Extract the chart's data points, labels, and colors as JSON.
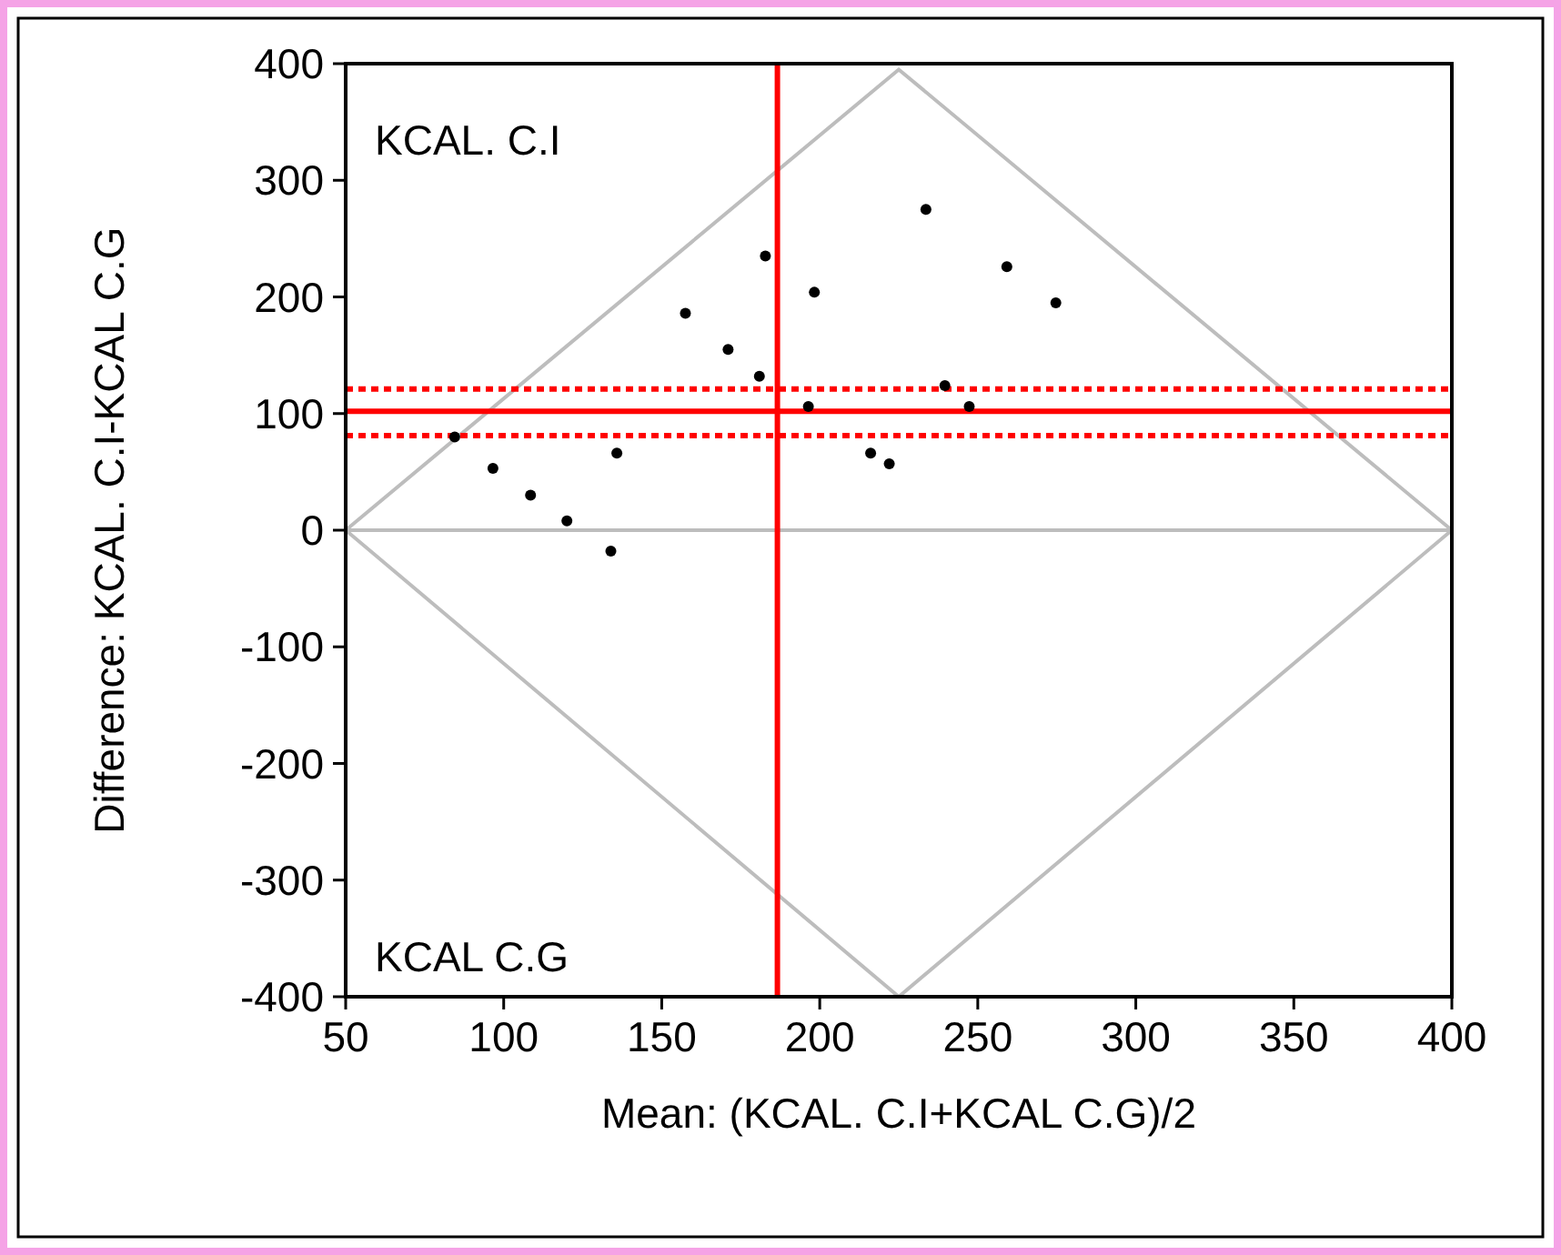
{
  "chart_data": {
    "type": "scatter",
    "xlabel": "Mean: (KCAL. C.I+KCAL C.G)/2",
    "ylabel": "Difference: KCAL. C.I-KCAL C.G",
    "xlim": [
      50,
      400
    ],
    "xticks": [
      50,
      100,
      150,
      200,
      250,
      300,
      350,
      400
    ],
    "ylim": [
      -400,
      400
    ],
    "yticks": [
      -400,
      -300,
      -200,
      -100,
      0,
      100,
      200,
      300,
      400
    ],
    "series": [
      {
        "type": "line",
        "color": "#bdbdbd",
        "marker": "none",
        "x": [
          50,
          225,
          400
        ],
        "values": [
          0,
          395,
          0
        ]
      },
      {
        "type": "line",
        "color": "#bdbdbd",
        "marker": "none",
        "x": [
          50,
          225,
          400
        ],
        "values": [
          0,
          -400,
          0
        ]
      },
      {
        "type": "line",
        "color": "#bdbdbd",
        "marker": "none",
        "x": [
          50,
          400
        ],
        "values": [
          0,
          0
        ]
      },
      {
        "color": "#000000",
        "marker": "circle",
        "x": [
          84.5,
          96.6,
          108.5,
          120,
          133.9,
          135.8,
          157.5,
          171,
          180.9,
          182.8,
          196.4,
          198.3,
          216.1,
          222,
          233.6,
          239.6,
          247.3,
          259.2,
          274.7
        ],
        "values": [
          80,
          53,
          30,
          8,
          -18,
          66,
          186,
          155,
          132,
          235,
          106,
          204,
          66,
          57,
          275,
          124,
          106,
          226,
          195
        ]
      }
    ],
    "ref_lines": [
      {
        "axis": "y",
        "value": 102,
        "color": "#ff0000",
        "line_style": "solid"
      },
      {
        "axis": "y",
        "value": 121,
        "color": "#ff0000",
        "line_style": "dotted"
      },
      {
        "axis": "y",
        "value": 81,
        "color": "#ff0000",
        "line_style": "dotted"
      },
      {
        "axis": "x",
        "value": 186.6,
        "color": "#ff0000",
        "line_style": "solid"
      }
    ],
    "annotations": [
      "KCAL. C.I",
      "KCAL C.G"
    ]
  }
}
